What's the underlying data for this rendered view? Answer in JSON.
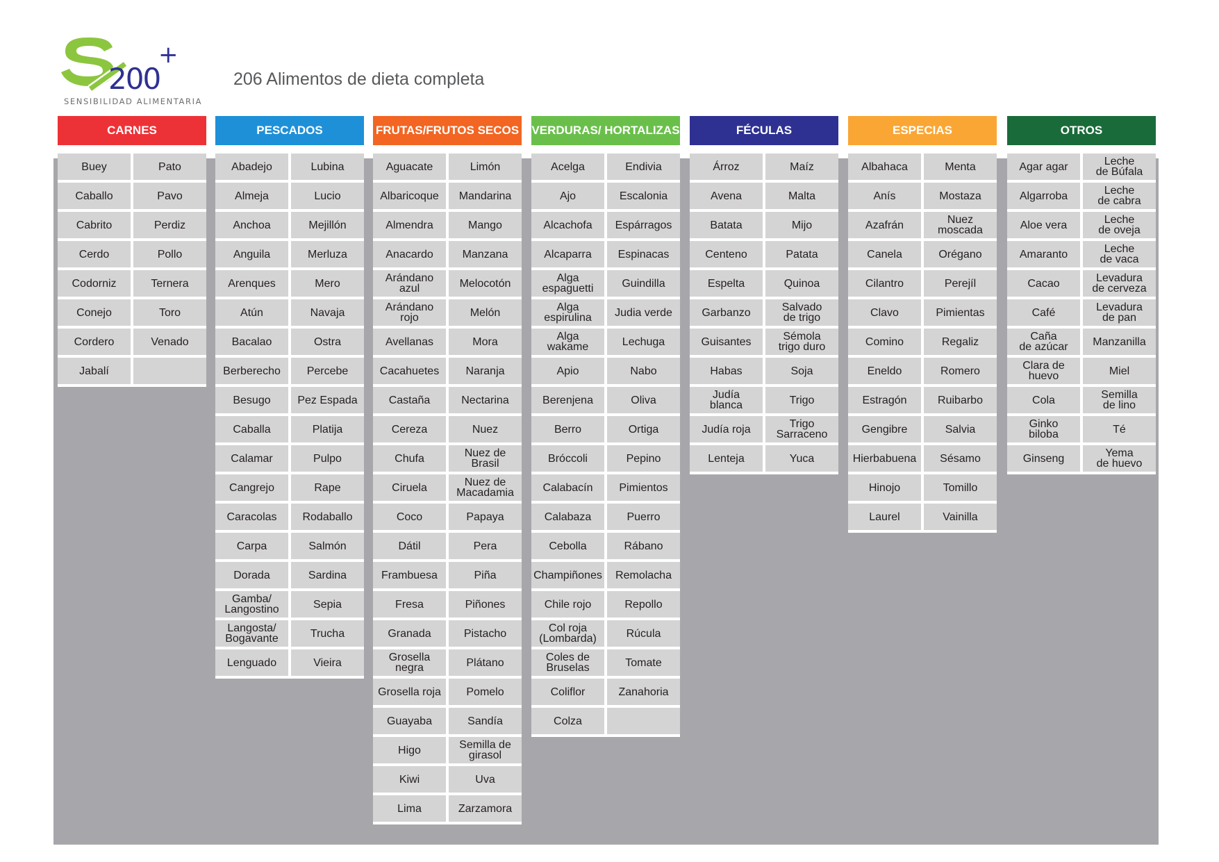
{
  "header": {
    "logo_text": "S/200+",
    "logo_subtitle": "SENSIBILIDAD ALIMENTARIA",
    "title": "206  Alimentos de dieta completa"
  },
  "colors": {
    "panel_gray": "#a7a7ab",
    "cell_gray": "#d5d4d4",
    "logo_green": "#8cc63f",
    "logo_blue": "#2e3192"
  },
  "categories": [
    {
      "name": "CARNES",
      "color": "#ed3237",
      "items": [
        "Buey",
        "Pato",
        "Caballo",
        "Pavo",
        "Cabrito",
        "Perdiz",
        "Cerdo",
        "Pollo",
        "Codorniz",
        "Ternera",
        "Conejo",
        "Toro",
        "Cordero",
        "Venado",
        "Jabalí",
        ""
      ]
    },
    {
      "name": "PESCADOS",
      "color": "#1e90d8",
      "items": [
        "Abadejo",
        "Lubina",
        "Almeja",
        "Lucio",
        "Anchoa",
        "Mejillón",
        "Anguila",
        "Merluza",
        "Arenques",
        "Mero",
        "Atún",
        "Navaja",
        "Bacalao",
        "Ostra",
        "Berberecho",
        "Percebe",
        "Besugo",
        "Pez Espada",
        "Caballa",
        "Platija",
        "Calamar",
        "Pulpo",
        "Cangrejo",
        "Rape",
        "Caracolas",
        "Rodaballo",
        "Carpa",
        "Salmón",
        "Dorada",
        "Sardina",
        "Gamba/\nLangostino",
        "Sepia",
        "Langosta/\nBogavante",
        "Trucha",
        "Lenguado",
        "Vieira"
      ]
    },
    {
      "name": "FRUTAS/FRUTOS SECOS",
      "color": "#f26522",
      "items": [
        "Aguacate",
        "Limón",
        "Albaricoque",
        "Mandarina",
        "Almendra",
        "Mango",
        "Anacardo",
        "Manzana",
        "Arándano\nazul",
        "Melocotón",
        "Arándano\nrojo",
        "Melón",
        "Avellanas",
        "Mora",
        "Cacahuetes",
        "Naranja",
        "Castaña",
        "Nectarina",
        "Cereza",
        "Nuez",
        "Chufa",
        "Nuez de\nBrasil",
        "Ciruela",
        "Nuez de\nMacadamia",
        "Coco",
        "Papaya",
        "Dátil",
        "Pera",
        "Frambuesa",
        "Piña",
        "Fresa",
        "Piñones",
        "Granada",
        "Pistacho",
        "Grosella\nnegra",
        "Plátano",
        "Grosella roja",
        "Pomelo",
        "Guayaba",
        "Sandía",
        "Higo",
        "Semilla de\ngirasol",
        "Kiwi",
        "Uva",
        "Lima",
        "Zarzamora"
      ]
    },
    {
      "name": "VERDURAS/ HORTALIZAS",
      "color": "#6abf4b",
      "items": [
        "Acelga",
        "Endivia",
        "Ajo",
        "Escalonia",
        "Alcachofa",
        "Espárragos",
        "Alcaparra",
        "Espinacas",
        "Alga\nespaguetti",
        "Guindilla",
        "Alga\nespirulina",
        "Judia verde",
        "Alga\nwakame",
        "Lechuga",
        "Apio",
        "Nabo",
        "Berenjena",
        "Oliva",
        "Berro",
        "Ortiga",
        "Bróccoli",
        "Pepino",
        "Calabacín",
        "Pimientos",
        "Calabaza",
        "Puerro",
        "Cebolla",
        "Rábano",
        "Champiñones",
        "Remolacha",
        "Chile rojo",
        "Repollo",
        "Col roja\n(Lombarda)",
        "Rúcula",
        "Coles de\nBruselas",
        "Tomate",
        "Coliflor",
        "Zanahoria",
        "Colza",
        ""
      ]
    },
    {
      "name": "FÉCULAS",
      "color": "#2e3192",
      "items": [
        "Árroz",
        "Maíz",
        "Avena",
        "Malta",
        "Batata",
        "Mijo",
        "Centeno",
        "Patata",
        "Espelta",
        "Quinoa",
        "Garbanzo",
        "Salvado\nde trigo",
        "Guisantes",
        "Sémola\ntrigo duro",
        "Habas",
        "Soja",
        "Judía\nblanca",
        "Trigo",
        "Judía roja",
        "Trigo\nSarraceno",
        "Lenteja",
        "Yuca"
      ]
    },
    {
      "name": "ESPECIAS",
      "color": "#faa635",
      "items": [
        "Albahaca",
        "Menta",
        "Anís",
        "Mostaza",
        "Azafrán",
        "Nuez\nmoscada",
        "Canela",
        "Orégano",
        "Cilantro",
        "Perejíl",
        "Clavo",
        "Pimientas",
        "Comino",
        "Regaliz",
        "Eneldo",
        "Romero",
        "Estragón",
        "Ruibarbo",
        "Gengibre",
        "Salvia",
        "Hierbabuena",
        "Sésamo",
        "Hinojo",
        "Tomillo",
        "Laurel",
        "Vainilla"
      ]
    },
    {
      "name": "OTROS",
      "color": "#1a6b3a",
      "items": [
        "Agar agar",
        "Leche\nde Búfala",
        "Algarroba",
        "Leche\nde cabra",
        "Aloe vera",
        "Leche\nde oveja",
        "Amaranto",
        "Leche\nde vaca",
        "Cacao",
        "Levadura\nde cerveza",
        "Café",
        "Levadura\nde pan",
        "Caña\nde azúcar",
        "Manzanilla",
        "Clara de\nhuevo",
        "Miel",
        "Cola",
        "Semilla\nde lino",
        "Ginko\nbiloba",
        "Té",
        "Ginseng",
        "Yema\nde huevo"
      ]
    }
  ]
}
